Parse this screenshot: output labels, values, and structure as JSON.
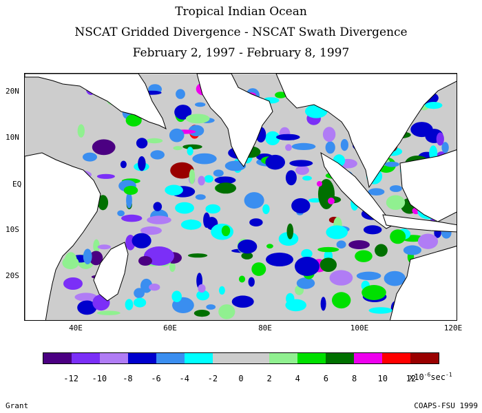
{
  "title": {
    "line1": "Tropical Indian Ocean",
    "line2": "NSCAT Gridded Divergence - NSCAT Swath Divergence",
    "line3": "February 2, 1997 - February 8, 1997"
  },
  "map": {
    "lat_labels": [
      "20N",
      "10N",
      "EQ",
      "10S",
      "20S"
    ],
    "lon_labels": [
      "40E",
      "60E",
      "80E",
      "100E",
      "120E"
    ],
    "lon_range": [
      30,
      122
    ],
    "lat_range": [
      -30,
      25
    ]
  },
  "colorbar": {
    "colors": [
      "#4b0082",
      "#7b2ff7",
      "#b07cf5",
      "#0000cd",
      "#3a8ef0",
      "#00ffff",
      "#cdcdcd",
      "#cdcdcd",
      "#90f090",
      "#00e000",
      "#007000",
      "#ee00ee",
      "#ff0000",
      "#990000"
    ],
    "labels": [
      "-12",
      "-10",
      "-8",
      "-6",
      "-4",
      "-2",
      "0",
      "2",
      "4",
      "6",
      "8",
      "10",
      "12"
    ],
    "units_prefix": "x10",
    "units_exp": "-6",
    "units_mid": "sec",
    "units_exp2": "-1"
  },
  "footer": {
    "left": "Grant",
    "right": "COAPS-FSU 1999"
  },
  "colors": {
    "land": "#ffffff",
    "ocean_gray": "#cdcdcd",
    "coast": "#000000"
  }
}
